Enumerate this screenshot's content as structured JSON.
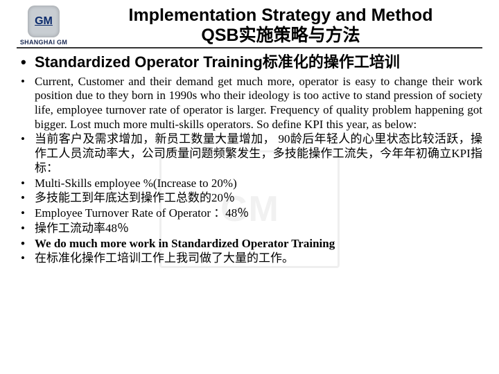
{
  "logo": {
    "mark": "GM",
    "caption": "SHANGHAI GM"
  },
  "title": {
    "line1": "Implementation Strategy and Method",
    "line2": "QSB实施策略与方法"
  },
  "watermark": "GM",
  "bullets": {
    "main": "Standardized  Operator Training标准化的操作工培训",
    "items": [
      {
        "text": "Current, Customer and their demand get much more, operator is easy to change their work position due to they born in 1990s who their ideology is too active to stand pression of society life, employee turnover rate of operator is larger. Frequency of quality problem happening got bigger. Lost much more multi-skills operators. So define KPI this year, as below:",
        "bold": false
      },
      {
        "text": "当前客户及需求增加，新员工数量大量增加， 90龄后年轻人的心里状态比较活跃，操作工人员流动率大，公司质量问题频繁发生，多技能操作工流失，今年年初确立KPI指标：",
        "bold": false
      },
      {
        "text": "Multi-Skills employee %(Increase to 20%)",
        "bold": false
      },
      {
        "text": "多技能工到年底达到操作工总数的20％",
        "bold": false
      },
      {
        "text": "Employee Turnover Rate of Operator ：48％",
        "bold": false
      },
      {
        "text": "操作工流动率48％",
        "bold": false
      },
      {
        "text": "We do much more work in Standardized  Operator Training",
        "bold": true
      },
      {
        "text": "在标准化操作工培训工作上我司做了大量的工作。",
        "bold": false
      }
    ]
  }
}
